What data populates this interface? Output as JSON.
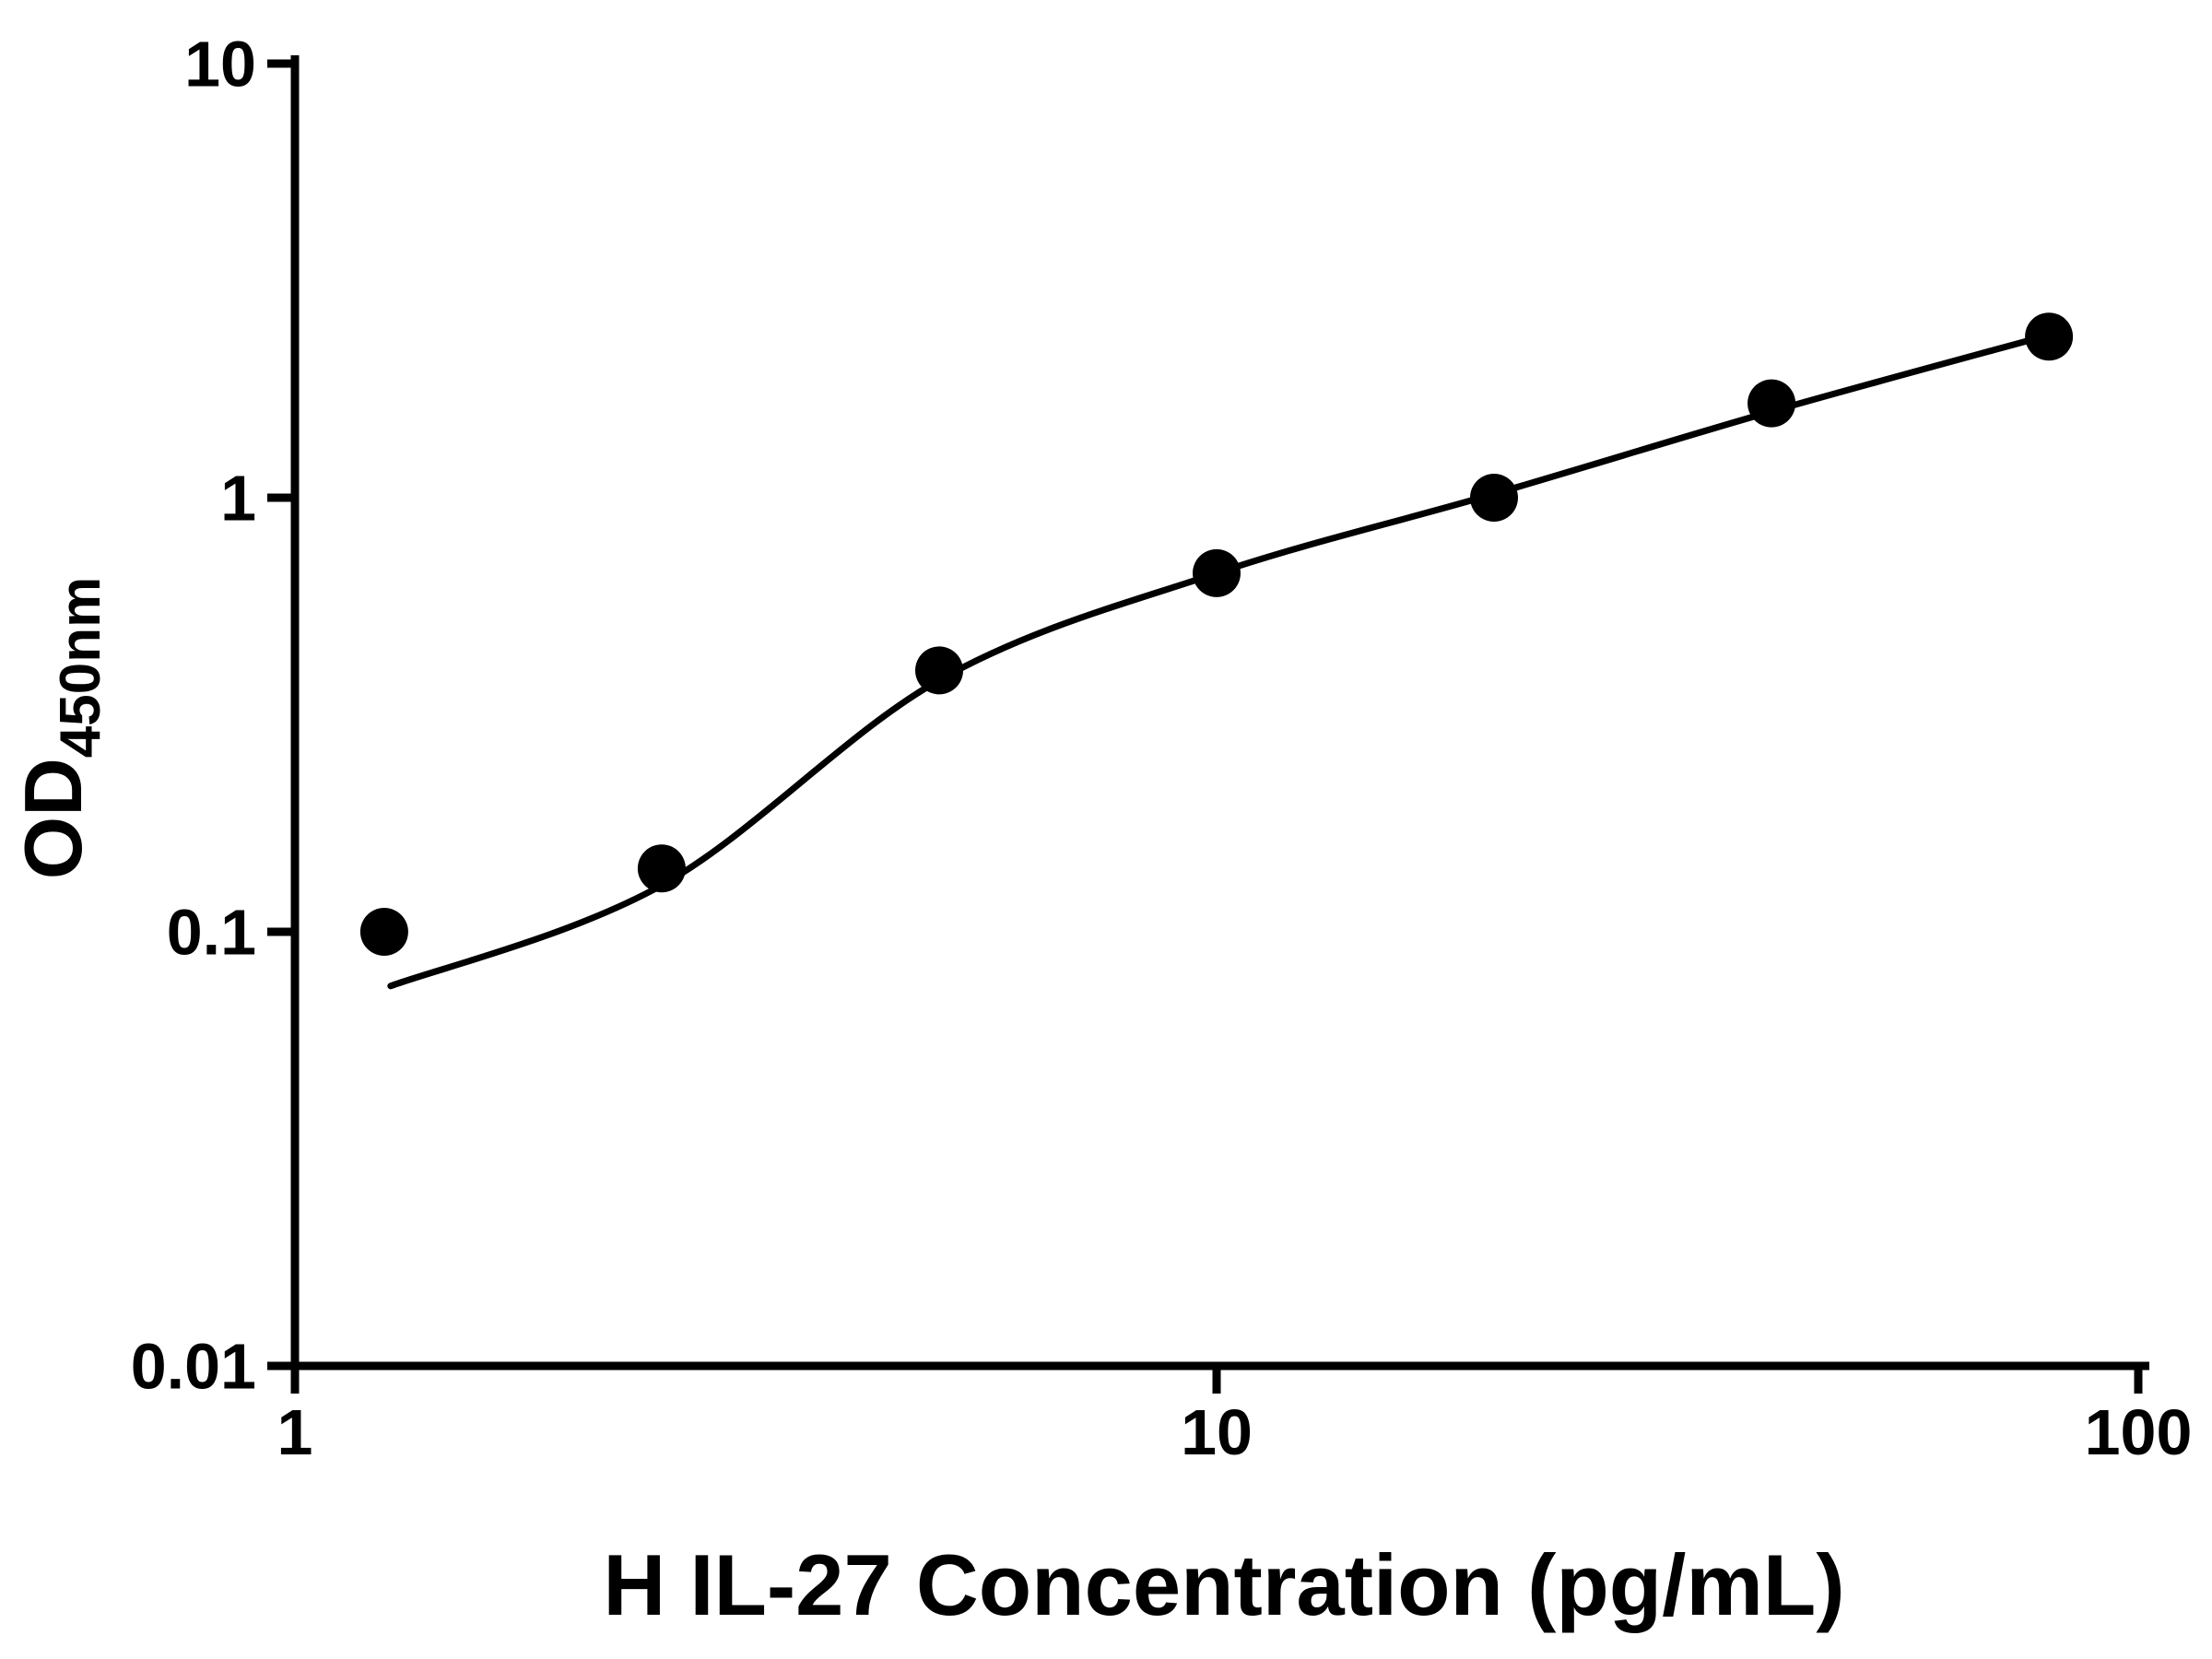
{
  "page": {
    "background": "#ffffff"
  },
  "chart_data": {
    "type": "scatter",
    "title": "",
    "xlabel": "H IL-27 Concentration (pg/mL)",
    "ylabel_main": "OD",
    "ylabel_sub": "450nm",
    "x_scale": "log",
    "y_scale": "log",
    "xlim": [
      1,
      100
    ],
    "ylim": [
      0.01,
      10
    ],
    "x_ticks": [
      "1",
      "10",
      "100"
    ],
    "y_ticks": [
      "0.01",
      "0.1",
      "1",
      "10"
    ],
    "grid": false,
    "legend": false,
    "axis_color": "#000000",
    "background": "#ffffff",
    "series": [
      {
        "name": "standard-points",
        "type": "scatter",
        "marker": "filled-circle",
        "color": "#000000",
        "x": [
          1.25,
          2.5,
          5,
          10,
          20,
          40,
          80
        ],
        "y": [
          0.1,
          0.14,
          0.4,
          0.67,
          1.0,
          1.65,
          2.35
        ]
      },
      {
        "name": "fit-curve",
        "type": "line",
        "color": "#000000",
        "x": [
          1.27,
          2.5,
          5,
          10,
          20,
          40,
          80
        ],
        "y": [
          0.075,
          0.128,
          0.38,
          0.67,
          1.02,
          1.58,
          2.37
        ]
      }
    ]
  }
}
